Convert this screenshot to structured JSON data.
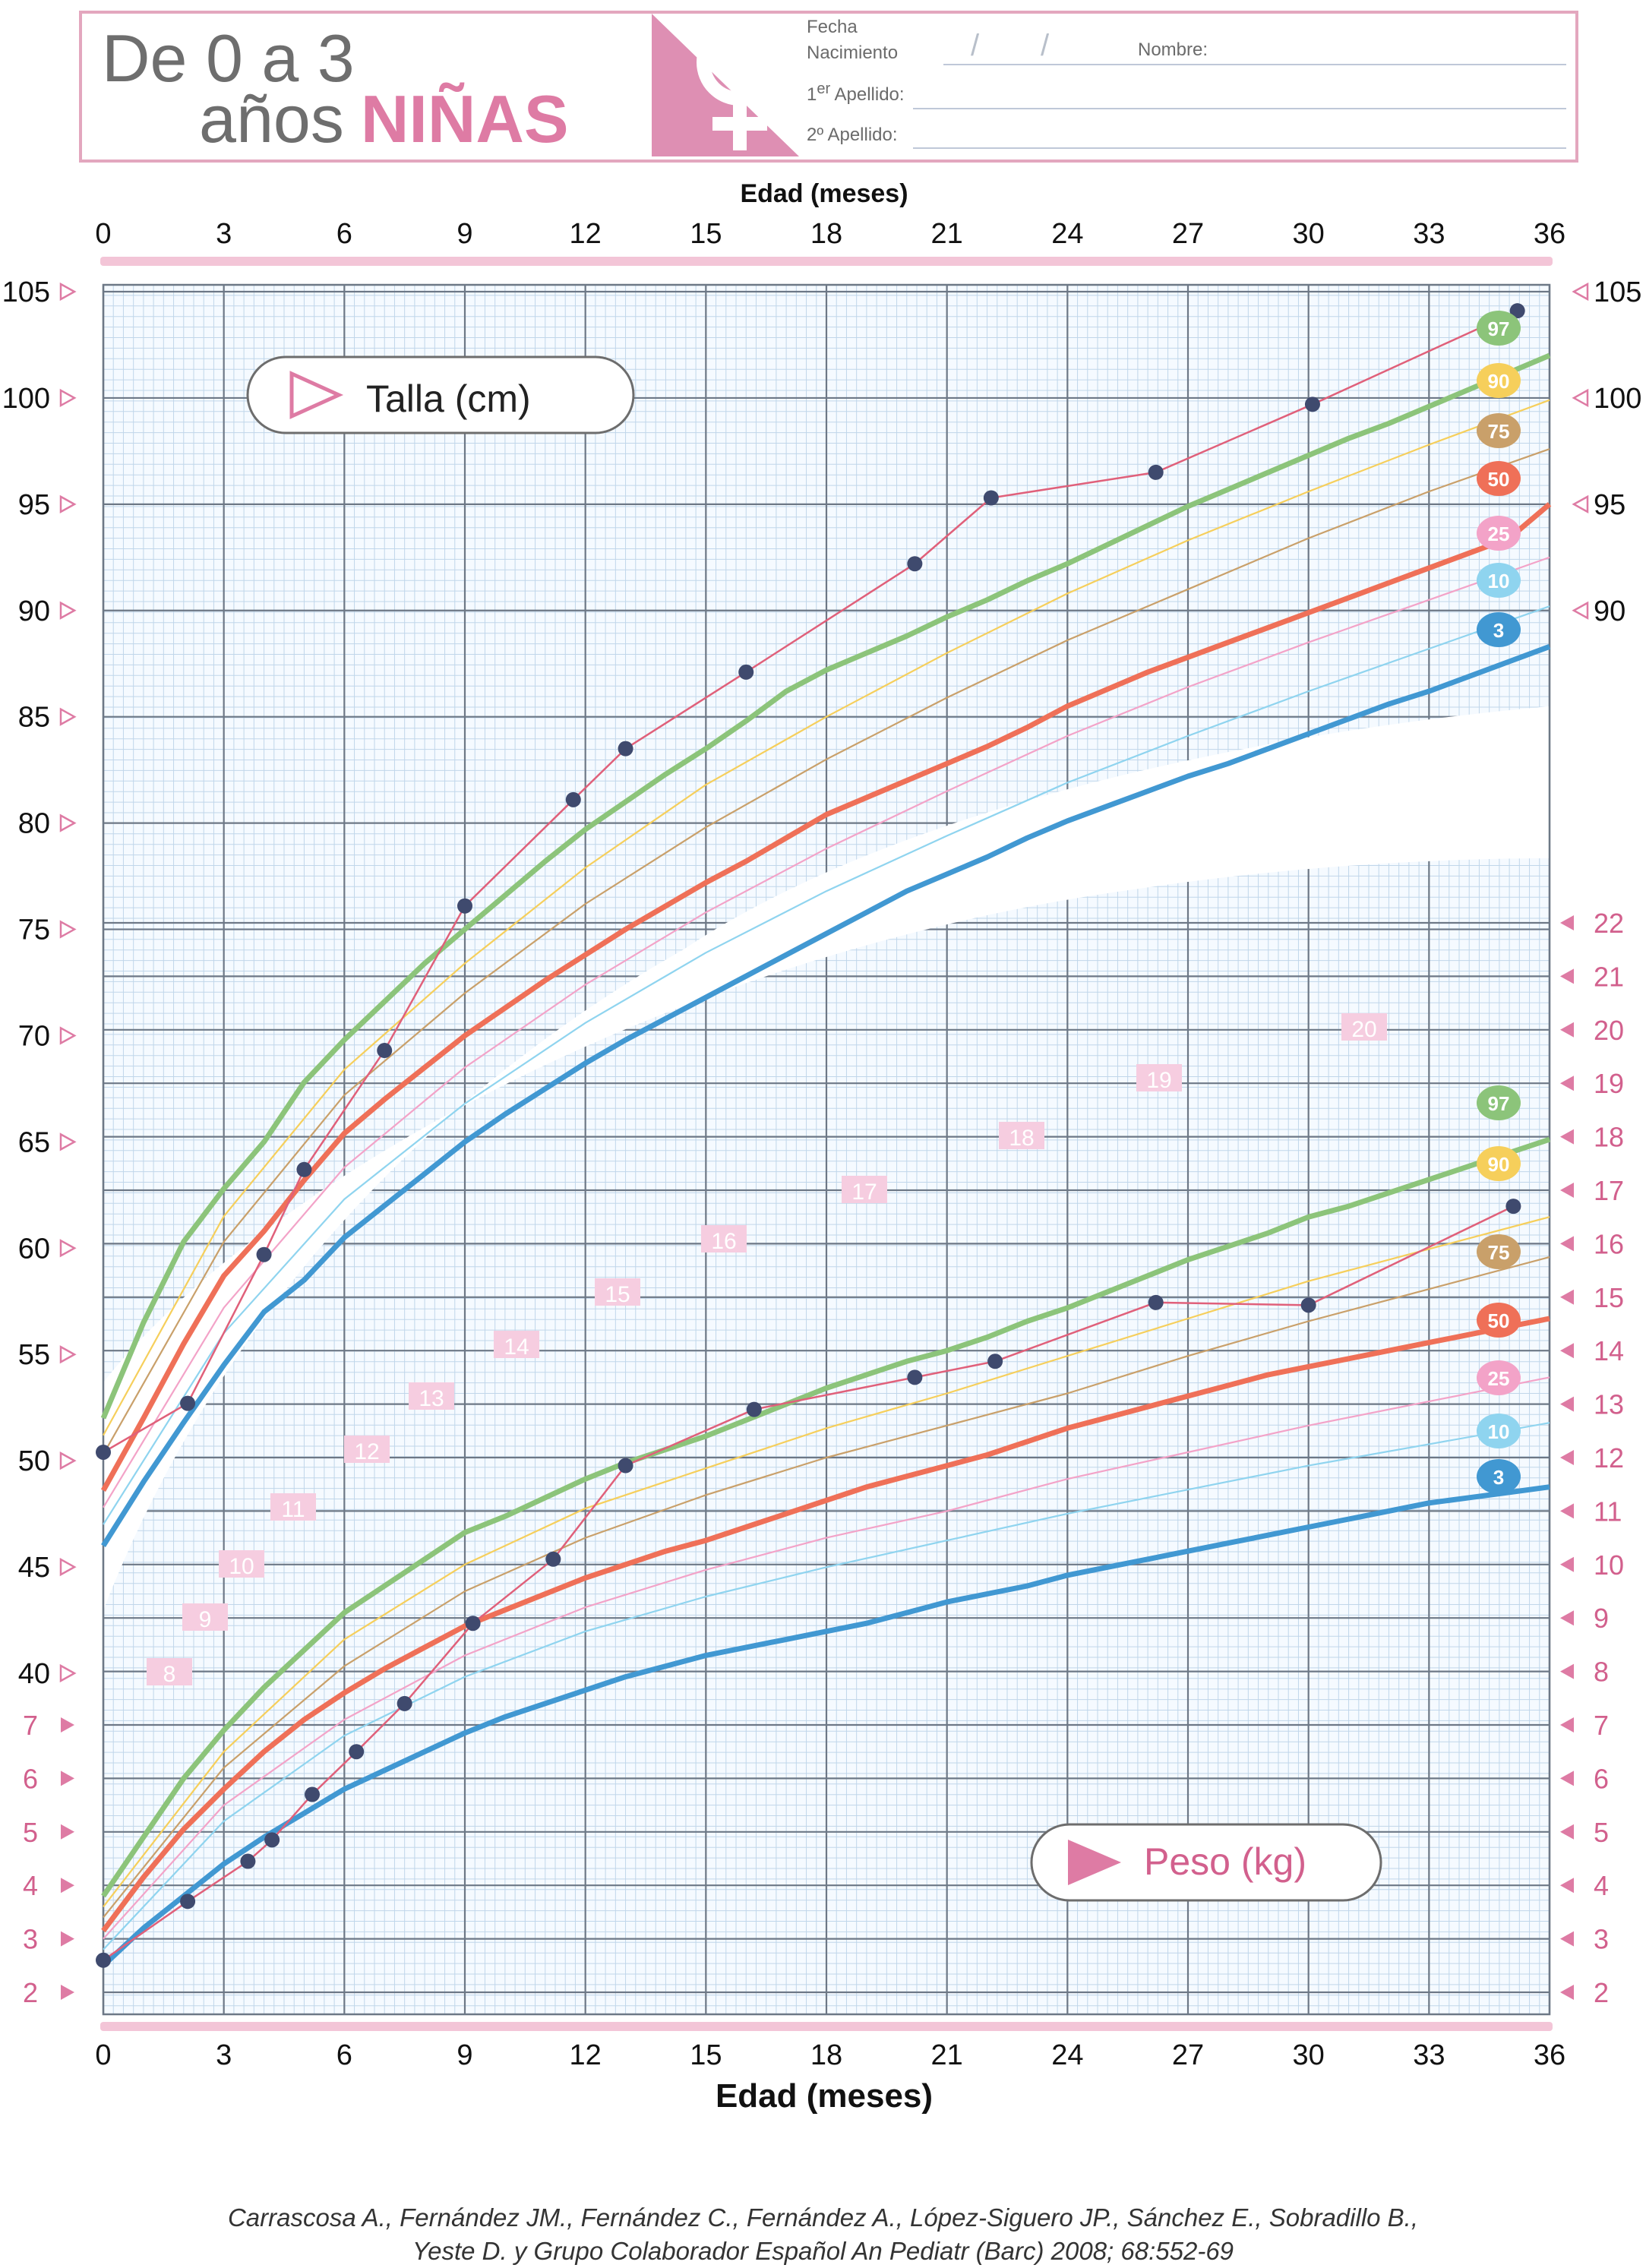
{
  "header": {
    "title_line1": "De 0 a 3",
    "title_line2a": "años",
    "title_line2b": "NIÑAS",
    "fecha_line1": "Fecha",
    "fecha_line2": "Nacimiento",
    "date_sep": "/",
    "nombre_label": "Nombre:",
    "apellido1_sup": "er",
    "apellido1_num": "1",
    "apellido1_label": "Apellido:",
    "apellido2_label": "2º Apellido:",
    "logo": "female-symbol-icon"
  },
  "citation": {
    "line1": "Carrascosa A., Fernández JM., Fernández C., Fernández A., López-Siguero JP., Sánchez E., Sobradillo B.,",
    "line2": "Yeste D. y Grupo Colaborador Español An Pediatr (Barc) 2008; 68:552-69"
  },
  "chart_data": {
    "type": "line",
    "top_axis_label": "Edad (meses)",
    "xlabel": "Edad (meses)",
    "x_ticks": [
      0,
      3,
      6,
      9,
      12,
      15,
      18,
      21,
      24,
      27,
      30,
      33,
      36
    ],
    "xlim": [
      0,
      36
    ],
    "grid": true,
    "percentile_colors": {
      "97": "#8cc47a",
      "90": "#f6cf5b",
      "75": "#c9a06a",
      "50": "#ef7058",
      "25": "#f3a3c8",
      "10": "#8fd4ef",
      "3": "#4198d2"
    },
    "height": {
      "label": "Talla (cm)",
      "unit": "cm",
      "ylim": [
        40,
        105
      ],
      "y_ticks": [
        40,
        45,
        50,
        55,
        60,
        65,
        70,
        75,
        80,
        85,
        90,
        95,
        100,
        105
      ],
      "right_ticks": [
        90,
        95,
        100,
        105
      ],
      "percentiles": [
        {
          "name": "97",
          "x": [
            0,
            1,
            2,
            3,
            4,
            5,
            6,
            7,
            8,
            9,
            10,
            11,
            12,
            13,
            14,
            15,
            16,
            17,
            18,
            19,
            20,
            21,
            22,
            23,
            24,
            25,
            26,
            27,
            28,
            29,
            30,
            31,
            32,
            33,
            34,
            35,
            36
          ],
          "y": [
            52,
            56.5,
            60.3,
            62.8,
            65,
            67.8,
            69.8,
            71.6,
            73.4,
            75,
            76.6,
            78.2,
            79.7,
            81,
            82.3,
            83.5,
            84.8,
            86.2,
            87.2,
            88,
            88.8,
            89.7,
            90.5,
            91.4,
            92.2,
            93.1,
            94,
            94.9,
            95.7,
            96.5,
            97.3,
            98.1,
            98.8,
            99.6,
            100.4,
            101.2,
            102
          ]
        },
        {
          "name": "90",
          "x": [
            0,
            3,
            6,
            9,
            12,
            15,
            18,
            21,
            24,
            27,
            30,
            33,
            36
          ],
          "y": [
            51.2,
            61.5,
            68.4,
            73.4,
            77.9,
            81.8,
            85,
            88,
            90.8,
            93.3,
            95.6,
            97.8,
            99.9
          ]
        },
        {
          "name": "75",
          "x": [
            0,
            3,
            6,
            9,
            12,
            15,
            18,
            21,
            24,
            27,
            30,
            33,
            36
          ],
          "y": [
            50.3,
            60.3,
            67.2,
            72,
            76.2,
            79.8,
            83,
            85.9,
            88.6,
            91,
            93.4,
            95.6,
            97.6
          ]
        },
        {
          "name": "50",
          "x": [
            0,
            1,
            2,
            3,
            4,
            5,
            6,
            7,
            8,
            9,
            10,
            11,
            12,
            13,
            14,
            15,
            16,
            17,
            18,
            19,
            20,
            21,
            22,
            23,
            24,
            25,
            26,
            27,
            28,
            29,
            30,
            31,
            32,
            33,
            34,
            35,
            36
          ],
          "y": [
            48.6,
            52,
            55.5,
            58.7,
            60.8,
            63.2,
            65.4,
            67,
            68.5,
            70,
            71.3,
            72.6,
            73.8,
            75,
            76.1,
            77.2,
            78.2,
            79.3,
            80.4,
            81.2,
            82,
            82.8,
            83.6,
            84.5,
            85.5,
            86.3,
            87.1,
            87.8,
            88.5,
            89.2,
            89.9,
            90.6,
            91.3,
            92,
            92.7,
            93.4,
            95
          ]
        },
        {
          "name": "25",
          "x": [
            0,
            3,
            6,
            9,
            12,
            15,
            18,
            21,
            24,
            27,
            30,
            33,
            36
          ],
          "y": [
            47.8,
            57.2,
            63.8,
            68.5,
            72.4,
            75.8,
            78.8,
            81.5,
            84.1,
            86.4,
            88.5,
            90.5,
            92.5
          ]
        },
        {
          "name": "10",
          "x": [
            0,
            3,
            6,
            9,
            12,
            15,
            18,
            21,
            24,
            27,
            30,
            33,
            36
          ],
          "y": [
            47,
            56,
            62.3,
            66.8,
            70.6,
            73.9,
            76.8,
            79.4,
            81.9,
            84.1,
            86.2,
            88.2,
            90.2
          ]
        },
        {
          "name": "3",
          "x": [
            0,
            1,
            2,
            3,
            4,
            5,
            6,
            7,
            8,
            9,
            10,
            11,
            12,
            13,
            14,
            15,
            16,
            17,
            18,
            19,
            20,
            21,
            22,
            23,
            24,
            25,
            26,
            27,
            28,
            29,
            30,
            31,
            32,
            33,
            34,
            35,
            36
          ],
          "y": [
            46,
            49,
            51.8,
            54.5,
            57,
            58.5,
            60.5,
            62,
            63.5,
            65,
            66.3,
            67.5,
            68.7,
            69.8,
            70.8,
            71.8,
            72.8,
            73.8,
            74.8,
            75.8,
            76.8,
            77.6,
            78.4,
            79.3,
            80.1,
            80.8,
            81.5,
            82.2,
            82.8,
            83.5,
            84.2,
            84.9,
            85.6,
            86.2,
            86.9,
            87.6,
            88.3
          ]
        }
      ],
      "patient": {
        "x": [
          0,
          2.1,
          4,
          5,
          7,
          9,
          11.7,
          13,
          16,
          20.2,
          22.1,
          26.2,
          30.1,
          35.2
        ],
        "y": [
          50.4,
          52.7,
          59.7,
          63.7,
          69.3,
          76.1,
          81.1,
          83.5,
          87.1,
          92.2,
          95.3,
          96.5,
          99.7,
          104.1
        ]
      }
    },
    "weight": {
      "label": "Peso (kg)",
      "unit": "kg",
      "ylim": [
        2,
        22
      ],
      "y_ticks": [
        2,
        3,
        4,
        5,
        6,
        7,
        8,
        9,
        10,
        11,
        12,
        13,
        14,
        15,
        16,
        17,
        18,
        19,
        20,
        21,
        22
      ],
      "inner_labels": [
        8,
        9,
        10,
        11,
        12,
        13,
        14,
        15,
        16,
        17,
        18,
        19,
        20
      ],
      "percentiles": [
        {
          "name": "97",
          "x": [
            0,
            1,
            2,
            3,
            4,
            5,
            6,
            7,
            8,
            9,
            10,
            11,
            12,
            13,
            14,
            15,
            16,
            17,
            18,
            19,
            20,
            21,
            22,
            23,
            24,
            25,
            26,
            27,
            28,
            29,
            30,
            31,
            32,
            33,
            34,
            35,
            36
          ],
          "y": [
            3.8,
            4.9,
            6,
            6.9,
            7.7,
            8.4,
            9.1,
            9.6,
            10.1,
            10.6,
            10.9,
            11.25,
            11.6,
            11.9,
            12.15,
            12.4,
            12.7,
            13,
            13.3,
            13.55,
            13.8,
            14,
            14.25,
            14.55,
            14.8,
            15.1,
            15.4,
            15.7,
            15.95,
            16.2,
            16.5,
            16.7,
            16.95,
            17.2,
            17.45,
            17.7,
            17.95
          ]
        },
        {
          "name": "90",
          "x": [
            0,
            3,
            6,
            9,
            12,
            15,
            18,
            21,
            24,
            27,
            30,
            33,
            36
          ],
          "y": [
            3.6,
            6.5,
            8.6,
            10,
            11.05,
            11.8,
            12.55,
            13.2,
            13.9,
            14.6,
            15.3,
            15.9,
            16.5
          ]
        },
        {
          "name": "75",
          "x": [
            0,
            3,
            6,
            9,
            12,
            15,
            18,
            21,
            24,
            27,
            30,
            33,
            36
          ],
          "y": [
            3.4,
            6.2,
            8.1,
            9.5,
            10.5,
            11.3,
            12,
            12.6,
            13.2,
            13.9,
            14.55,
            15.15,
            15.75
          ]
        },
        {
          "name": "50",
          "x": [
            0,
            1,
            2,
            3,
            4,
            5,
            6,
            7,
            8,
            9,
            10,
            11,
            12,
            13,
            14,
            15,
            16,
            17,
            18,
            19,
            20,
            21,
            22,
            23,
            24,
            25,
            26,
            27,
            28,
            29,
            30,
            31,
            32,
            33,
            34,
            35,
            36
          ],
          "y": [
            3.15,
            4.15,
            5.05,
            5.8,
            6.5,
            7.1,
            7.6,
            8.05,
            8.45,
            8.85,
            9.15,
            9.45,
            9.75,
            10,
            10.25,
            10.45,
            10.7,
            10.95,
            11.2,
            11.45,
            11.65,
            11.85,
            12.05,
            12.3,
            12.55,
            12.75,
            12.95,
            13.15,
            13.35,
            13.55,
            13.7,
            13.85,
            14,
            14.15,
            14.3,
            14.45,
            14.6
          ]
        },
        {
          "name": "25",
          "x": [
            0,
            3,
            6,
            9,
            12,
            15,
            18,
            21,
            24,
            27,
            30,
            33,
            36
          ],
          "y": [
            3,
            5.5,
            7.1,
            8.3,
            9.2,
            9.9,
            10.5,
            11,
            11.6,
            12.1,
            12.6,
            13.05,
            13.5
          ]
        },
        {
          "name": "10",
          "x": [
            0,
            3,
            6,
            9,
            12,
            15,
            18,
            21,
            24,
            27,
            30,
            33,
            36
          ],
          "y": [
            2.8,
            5.2,
            6.8,
            7.9,
            8.75,
            9.4,
            9.95,
            10.45,
            10.95,
            11.4,
            11.85,
            12.25,
            12.65
          ]
        },
        {
          "name": "3",
          "x": [
            0,
            1,
            2,
            3,
            4,
            5,
            6,
            7,
            8,
            9,
            10,
            11,
            12,
            13,
            14,
            15,
            16,
            17,
            18,
            19,
            20,
            21,
            22,
            23,
            24,
            25,
            26,
            27,
            28,
            29,
            30,
            31,
            32,
            33,
            34,
            35,
            36
          ],
          "y": [
            2.5,
            3.2,
            3.8,
            4.4,
            4.9,
            5.35,
            5.8,
            6.15,
            6.5,
            6.85,
            7.15,
            7.4,
            7.65,
            7.9,
            8.1,
            8.3,
            8.45,
            8.6,
            8.75,
            8.9,
            9.1,
            9.3,
            9.45,
            9.6,
            9.8,
            9.95,
            10.1,
            10.25,
            10.4,
            10.55,
            10.7,
            10.85,
            11,
            11.15,
            11.25,
            11.35,
            11.45
          ]
        }
      ],
      "patient": {
        "x": [
          0,
          2.1,
          3.6,
          4.2,
          5.2,
          6.3,
          7.5,
          9.2,
          11.2,
          13,
          16.2,
          20.2,
          22.2,
          26.2,
          30,
          35.1
        ],
        "y": [
          2.6,
          3.7,
          4.45,
          4.85,
          5.7,
          6.5,
          7.4,
          8.9,
          10.1,
          11.85,
          12.9,
          13.5,
          13.8,
          14.9,
          14.85,
          16.7
        ]
      }
    }
  }
}
